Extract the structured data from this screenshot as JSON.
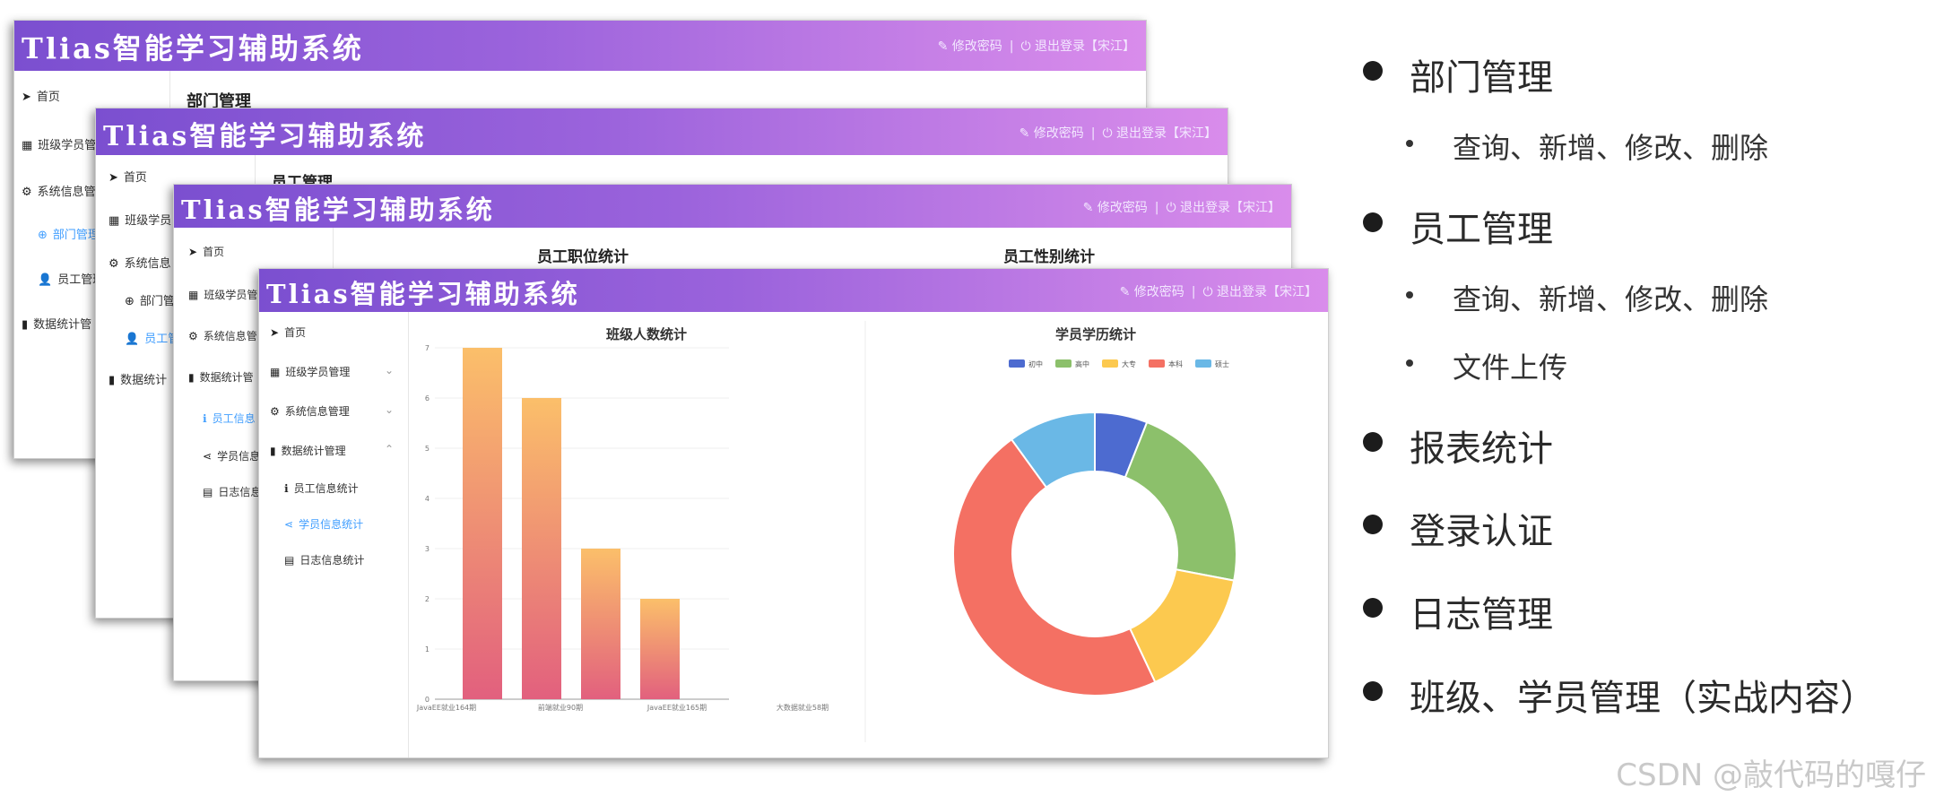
{
  "app": {
    "title": "Tlias智能学习辅助系统",
    "change_password": "修改密码",
    "logout": "退出登录【宋江】",
    "separator": "|"
  },
  "win1": {
    "sidebar": [
      "首页",
      "班级学员管",
      "系统信息管",
      "部门管理",
      "员工管理",
      "数据统计管"
    ],
    "content_title": "部门管理"
  },
  "win2": {
    "sidebar": [
      "首页",
      "班级学员",
      "系统信息",
      "部门管",
      "员工管",
      "数据统计"
    ],
    "content_title": "员工管理"
  },
  "win3": {
    "sidebar": [
      "首页",
      "班级学员管",
      "系统信息管",
      "数据统计管",
      "员工信息",
      "学员信息",
      "日志信息"
    ],
    "chart_titles": [
      "员工职位统计",
      "员工性别统计"
    ]
  },
  "win4": {
    "sidebar": {
      "home": "首页",
      "class_student_mgmt": "班级学员管理",
      "system_info_mgmt": "系统信息管理",
      "data_stats_mgmt": "数据统计管理",
      "employee_stats": "员工信息统计",
      "student_stats": "学员信息统计",
      "log_stats": "日志信息统计"
    }
  },
  "chart_data": [
    {
      "type": "bar",
      "title": "班级人数统计",
      "categories": [
        "JavaEE就业164期",
        "前端就业90期",
        "JavaEE就业165期",
        "大数据就业58期"
      ],
      "tick_labels_shown": [
        "JavaEE就业164期",
        "前端就业90期",
        "JavaEE就业165期",
        "大数据就业58期"
      ],
      "values": [
        7,
        6,
        3,
        2
      ],
      "ylim": [
        0,
        7
      ],
      "yticks": [
        0,
        1,
        2,
        3,
        4,
        5,
        6,
        7
      ],
      "colors": {
        "top": "#fbbf6a",
        "bottom": "#e2607e"
      },
      "grid": true
    },
    {
      "type": "pie",
      "title": "学员学历统计",
      "legend_position": "top",
      "labels": [
        "初中",
        "高中",
        "大专",
        "本科",
        "硕士"
      ],
      "values": [
        6,
        22,
        15,
        47,
        10
      ],
      "colors": [
        "#4d6bd0",
        "#8cc06b",
        "#fcc94f",
        "#f47063",
        "#6ab8e6"
      ],
      "donut": true
    }
  ],
  "bullets": [
    {
      "level": 1,
      "text": "部门管理"
    },
    {
      "level": 2,
      "text": "查询、新增、修改、删除"
    },
    {
      "level": 1,
      "text": "员工管理"
    },
    {
      "level": 2,
      "text": "查询、新增、修改、删除"
    },
    {
      "level": 2,
      "text": "文件上传"
    },
    {
      "level": 1,
      "text": "报表统计"
    },
    {
      "level": 1,
      "text": "登录认证"
    },
    {
      "level": 1,
      "text": "日志管理"
    },
    {
      "level": 1,
      "text": "班级、学员管理（实战内容）"
    }
  ],
  "watermark": "CSDN @敲代码的嘎仔"
}
